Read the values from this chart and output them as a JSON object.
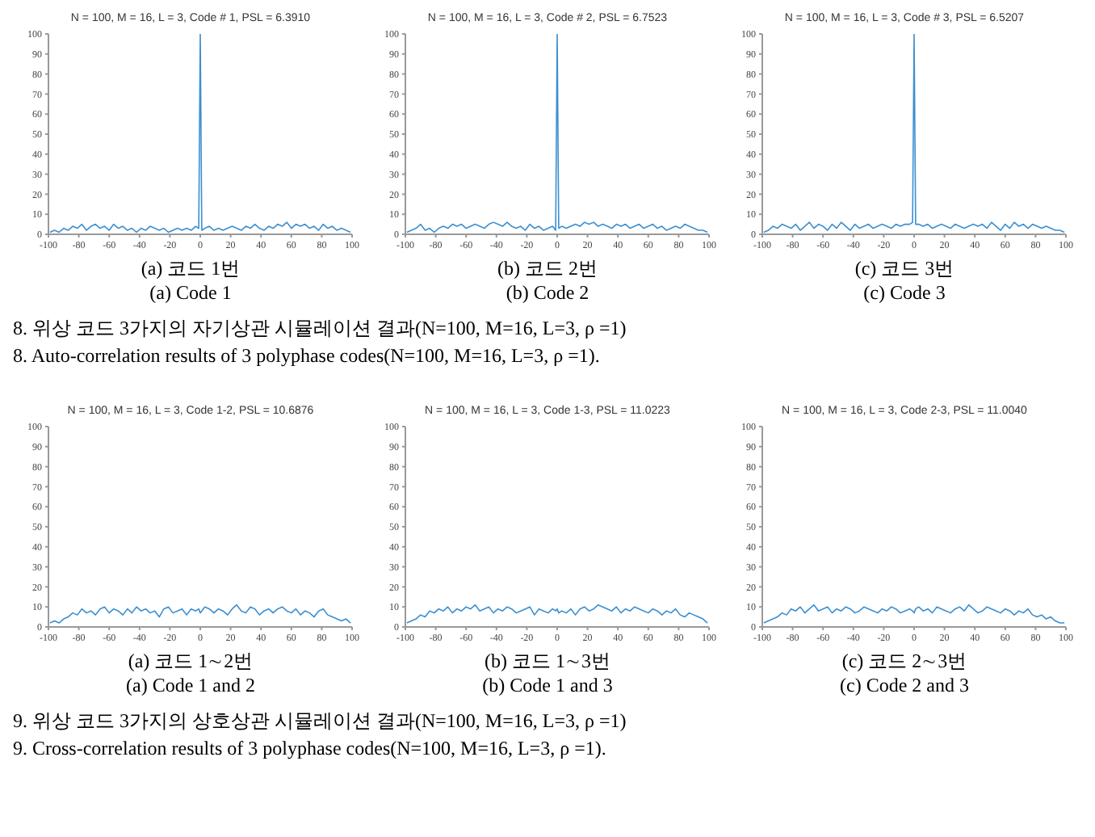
{
  "chart_data": [
    {
      "type": "line",
      "title": "N = 100, M = 16, L =  3, Code #  1, PSL = 6.3910",
      "annotations": [
        "(a)  코드 1번",
        "(a)  Code  1"
      ],
      "marker": "none",
      "grid": false,
      "xlim": [
        -100,
        100
      ],
      "xticks": [
        -100,
        -80,
        -60,
        -40,
        -20,
        0,
        20,
        40,
        60,
        80,
        100
      ],
      "ylim": [
        0,
        100
      ],
      "yticks": [
        0,
        10,
        20,
        30,
        40,
        50,
        60,
        70,
        80,
        90,
        100
      ],
      "x": [
        -99,
        -96,
        -93,
        -90,
        -87,
        -84,
        -81,
        -78,
        -75,
        -72,
        -69,
        -66,
        -63,
        -60,
        -57,
        -54,
        -51,
        -48,
        -45,
        -42,
        -39,
        -36,
        -33,
        -30,
        -27,
        -24,
        -21,
        -18,
        -15,
        -12,
        -9,
        -6,
        -3,
        -1,
        0,
        1,
        3,
        6,
        9,
        12,
        15,
        18,
        21,
        24,
        27,
        30,
        33,
        36,
        39,
        42,
        45,
        48,
        51,
        54,
        57,
        60,
        63,
        66,
        69,
        72,
        75,
        78,
        81,
        84,
        87,
        90,
        93,
        96,
        99
      ],
      "series": [
        {
          "color": "#3c8fd0",
          "values": [
            1,
            2,
            1,
            3,
            2,
            4,
            3,
            5,
            2,
            4,
            5,
            3,
            4,
            2,
            5,
            3,
            4,
            2,
            3,
            1,
            3,
            2,
            4,
            3,
            2,
            3,
            1,
            2,
            3,
            2,
            3,
            2,
            4,
            3,
            100,
            2,
            3,
            4,
            2,
            3,
            2,
            3,
            4,
            3,
            2,
            4,
            3,
            5,
            3,
            2,
            4,
            3,
            5,
            4,
            6,
            3,
            5,
            4,
            5,
            3,
            4,
            2,
            5,
            3,
            4,
            2,
            3,
            2,
            1
          ]
        }
      ]
    },
    {
      "type": "line",
      "title": "N = 100, M = 16, L =  3, Code #  2, PSL = 6.7523",
      "annotations": [
        "(b)  코드 2번",
        "(b)  Code  2"
      ],
      "marker": "none",
      "grid": false,
      "xlim": [
        -100,
        100
      ],
      "xticks": [
        -100,
        -80,
        -60,
        -40,
        -20,
        0,
        20,
        40,
        60,
        80,
        100
      ],
      "ylim": [
        0,
        100
      ],
      "yticks": [
        0,
        10,
        20,
        30,
        40,
        50,
        60,
        70,
        80,
        90,
        100
      ],
      "x": [
        -99,
        -96,
        -93,
        -90,
        -87,
        -84,
        -81,
        -78,
        -75,
        -72,
        -69,
        -66,
        -63,
        -60,
        -57,
        -54,
        -51,
        -48,
        -45,
        -42,
        -39,
        -36,
        -33,
        -30,
        -27,
        -24,
        -21,
        -18,
        -15,
        -12,
        -9,
        -6,
        -3,
        -1,
        0,
        1,
        3,
        6,
        9,
        12,
        15,
        18,
        21,
        24,
        27,
        30,
        33,
        36,
        39,
        42,
        45,
        48,
        51,
        54,
        57,
        60,
        63,
        66,
        69,
        72,
        75,
        78,
        81,
        84,
        87,
        90,
        93,
        96,
        99
      ],
      "series": [
        {
          "color": "#3c8fd0",
          "values": [
            1,
            2,
            3,
            5,
            2,
            3,
            1,
            3,
            4,
            3,
            5,
            4,
            5,
            3,
            4,
            5,
            4,
            3,
            5,
            6,
            5,
            4,
            6,
            4,
            3,
            4,
            2,
            5,
            3,
            4,
            2,
            3,
            4,
            2,
            100,
            3,
            4,
            3,
            4,
            5,
            4,
            6,
            5,
            6,
            4,
            5,
            4,
            3,
            5,
            4,
            5,
            3,
            4,
            5,
            3,
            4,
            5,
            3,
            4,
            2,
            3,
            4,
            3,
            5,
            4,
            3,
            2,
            2,
            1
          ]
        }
      ]
    },
    {
      "type": "line",
      "title": "N = 100, M = 16, L =  3, Code #  3, PSL = 6.5207",
      "annotations": [
        "(c)  코드 3번",
        "(c)  Code  3",
        "8.  위상 코드 3가지의 자기상관 시뮬레이션 결과(N=100,  M=16,  L=3,   ρ =1)",
        "8.  Auto-correlation results of 3 polyphase codes(N=100,  M=16,  L=3,   ρ =1)."
      ],
      "marker": "none",
      "grid": false,
      "xlim": [
        -100,
        100
      ],
      "xticks": [
        -100,
        -80,
        -60,
        -40,
        -20,
        0,
        20,
        40,
        60,
        80,
        100
      ],
      "ylim": [
        0,
        100
      ],
      "yticks": [
        0,
        10,
        20,
        30,
        40,
        50,
        60,
        70,
        80,
        90,
        100
      ],
      "x": [
        -99,
        -96,
        -93,
        -90,
        -87,
        -84,
        -81,
        -78,
        -75,
        -72,
        -69,
        -66,
        -63,
        -60,
        -57,
        -54,
        -51,
        -48,
        -45,
        -42,
        -39,
        -36,
        -33,
        -30,
        -27,
        -24,
        -21,
        -18,
        -15,
        -12,
        -9,
        -6,
        -3,
        -1,
        0,
        1,
        3,
        6,
        9,
        12,
        15,
        18,
        21,
        24,
        27,
        30,
        33,
        36,
        39,
        42,
        45,
        48,
        51,
        54,
        57,
        60,
        63,
        66,
        69,
        72,
        75,
        78,
        81,
        84,
        87,
        90,
        93,
        96,
        99
      ],
      "series": [
        {
          "color": "#3c8fd0",
          "values": [
            1,
            2,
            4,
            3,
            5,
            4,
            3,
            5,
            2,
            4,
            6,
            3,
            5,
            4,
            2,
            5,
            3,
            6,
            4,
            2,
            5,
            3,
            4,
            5,
            3,
            4,
            5,
            4,
            3,
            5,
            4,
            5,
            5,
            6,
            100,
            5,
            5,
            4,
            5,
            3,
            4,
            5,
            4,
            3,
            5,
            4,
            3,
            4,
            5,
            4,
            5,
            3,
            6,
            4,
            2,
            5,
            3,
            6,
            4,
            5,
            3,
            5,
            4,
            3,
            4,
            3,
            2,
            2,
            1
          ]
        }
      ]
    },
    {
      "type": "line",
      "title": "N = 100, M = 16, L =  3, Code 1-2, PSL = 10.6876",
      "annotations": [
        "(a)  코드 1∼2번",
        "(a)  Code  1  and  2"
      ],
      "marker": "none",
      "grid": false,
      "xlim": [
        -100,
        100
      ],
      "xticks": [
        -100,
        -80,
        -60,
        -40,
        -20,
        0,
        20,
        40,
        60,
        80,
        100
      ],
      "ylim": [
        0,
        100
      ],
      "yticks": [
        0,
        10,
        20,
        30,
        40,
        50,
        60,
        70,
        80,
        90,
        100
      ],
      "x": [
        -99,
        -96,
        -93,
        -90,
        -87,
        -84,
        -81,
        -78,
        -75,
        -72,
        -69,
        -66,
        -63,
        -60,
        -57,
        -54,
        -51,
        -48,
        -45,
        -42,
        -39,
        -36,
        -33,
        -30,
        -27,
        -24,
        -21,
        -18,
        -15,
        -12,
        -9,
        -6,
        -3,
        -1,
        0,
        1,
        3,
        6,
        9,
        12,
        15,
        18,
        21,
        24,
        27,
        30,
        33,
        36,
        39,
        42,
        45,
        48,
        51,
        54,
        57,
        60,
        63,
        66,
        69,
        72,
        75,
        78,
        81,
        84,
        87,
        90,
        93,
        96,
        99
      ],
      "series": [
        {
          "color": "#3c8fd0",
          "values": [
            2,
            3,
            2,
            4,
            5,
            7,
            6,
            9,
            7,
            8,
            6,
            9,
            10,
            7,
            9,
            8,
            6,
            9,
            7,
            10,
            8,
            9,
            7,
            8,
            5,
            9,
            10,
            7,
            8,
            9,
            6,
            9,
            8,
            9,
            7,
            8,
            10,
            9,
            7,
            9,
            8,
            6,
            9,
            11,
            8,
            7,
            10,
            9,
            6,
            8,
            9,
            7,
            9,
            10,
            8,
            7,
            9,
            6,
            8,
            7,
            5,
            8,
            9,
            6,
            5,
            4,
            3,
            4,
            2
          ]
        }
      ]
    },
    {
      "type": "line",
      "title": "N = 100, M = 16, L =  3, Code 1-3, PSL = 11.0223",
      "annotations": [
        "(b)  코드 1∼3번",
        "(b)  Code  1  and  3"
      ],
      "marker": "none",
      "grid": false,
      "xlim": [
        -100,
        100
      ],
      "xticks": [
        -100,
        -80,
        -60,
        -40,
        -20,
        0,
        20,
        40,
        60,
        80,
        100
      ],
      "ylim": [
        0,
        100
      ],
      "yticks": [
        0,
        10,
        20,
        30,
        40,
        50,
        60,
        70,
        80,
        90,
        100
      ],
      "x": [
        -99,
        -96,
        -93,
        -90,
        -87,
        -84,
        -81,
        -78,
        -75,
        -72,
        -69,
        -66,
        -63,
        -60,
        -57,
        -54,
        -51,
        -48,
        -45,
        -42,
        -39,
        -36,
        -33,
        -30,
        -27,
        -24,
        -21,
        -18,
        -15,
        -12,
        -9,
        -6,
        -3,
        -1,
        0,
        1,
        3,
        6,
        9,
        12,
        15,
        18,
        21,
        24,
        27,
        30,
        33,
        36,
        39,
        42,
        45,
        48,
        51,
        54,
        57,
        60,
        63,
        66,
        69,
        72,
        75,
        78,
        81,
        84,
        87,
        90,
        93,
        96,
        99
      ],
      "series": [
        {
          "color": "#3c8fd0",
          "values": [
            2,
            3,
            4,
            6,
            5,
            8,
            7,
            9,
            8,
            10,
            7,
            9,
            8,
            10,
            9,
            11,
            8,
            9,
            10,
            7,
            9,
            8,
            10,
            9,
            7,
            8,
            9,
            10,
            6,
            9,
            8,
            7,
            9,
            8,
            9,
            7,
            8,
            7,
            9,
            6,
            9,
            10,
            8,
            9,
            11,
            10,
            9,
            8,
            10,
            7,
            9,
            8,
            10,
            9,
            8,
            7,
            9,
            8,
            6,
            8,
            7,
            9,
            6,
            5,
            7,
            6,
            5,
            4,
            2
          ]
        }
      ]
    },
    {
      "type": "line",
      "title": "N = 100, M = 16, L =  3, Code 2-3, PSL = 11.0040",
      "annotations": [
        "(c)  코드 2∼3번",
        "(c)  Code  2  and  3",
        "9.  위상 코드 3가지의 상호상관 시뮬레이션 결과(N=100,  M=16,  L=3,   ρ =1)",
        "9.  Cross-correlation results of 3 polyphase codes(N=100,  M=16,  L=3,   ρ =1)."
      ],
      "marker": "none",
      "grid": false,
      "xlim": [
        -100,
        100
      ],
      "xticks": [
        -100,
        -80,
        -60,
        -40,
        -20,
        0,
        20,
        40,
        60,
        80,
        100
      ],
      "ylim": [
        0,
        100
      ],
      "yticks": [
        0,
        10,
        20,
        30,
        40,
        50,
        60,
        70,
        80,
        90,
        100
      ],
      "x": [
        -99,
        -96,
        -93,
        -90,
        -87,
        -84,
        -81,
        -78,
        -75,
        -72,
        -69,
        -66,
        -63,
        -60,
        -57,
        -54,
        -51,
        -48,
        -45,
        -42,
        -39,
        -36,
        -33,
        -30,
        -27,
        -24,
        -21,
        -18,
        -15,
        -12,
        -9,
        -6,
        -3,
        -1,
        0,
        1,
        3,
        6,
        9,
        12,
        15,
        18,
        21,
        24,
        27,
        30,
        33,
        36,
        39,
        42,
        45,
        48,
        51,
        54,
        57,
        60,
        63,
        66,
        69,
        72,
        75,
        78,
        81,
        84,
        87,
        90,
        93,
        96,
        99
      ],
      "series": [
        {
          "color": "#3c8fd0",
          "values": [
            2,
            3,
            4,
            5,
            7,
            6,
            9,
            8,
            10,
            7,
            9,
            11,
            8,
            9,
            10,
            7,
            9,
            8,
            10,
            9,
            7,
            8,
            10,
            9,
            8,
            7,
            9,
            8,
            10,
            9,
            7,
            8,
            9,
            8,
            7,
            9,
            10,
            8,
            9,
            7,
            10,
            9,
            8,
            7,
            9,
            10,
            8,
            11,
            9,
            7,
            8,
            10,
            9,
            8,
            7,
            9,
            8,
            6,
            8,
            7,
            9,
            6,
            5,
            6,
            4,
            5,
            3,
            2,
            2
          ]
        }
      ]
    }
  ]
}
